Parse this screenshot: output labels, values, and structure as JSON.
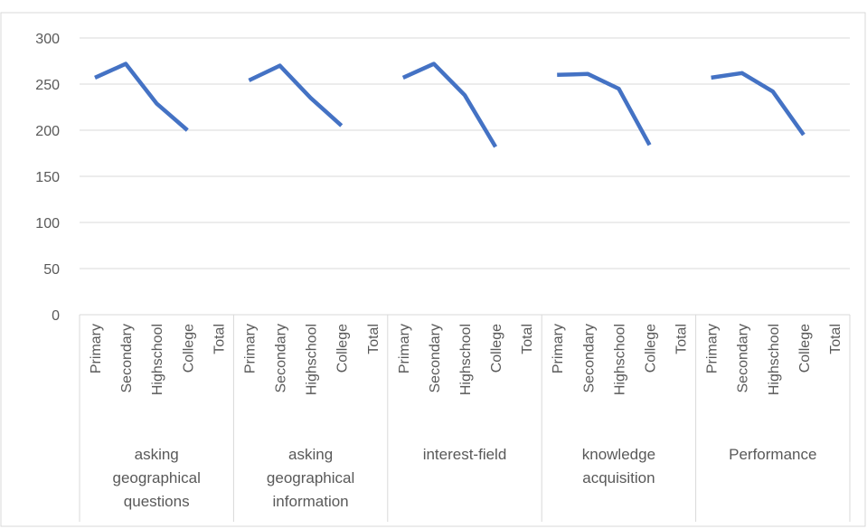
{
  "chart_data": {
    "type": "line",
    "ylim": [
      0,
      300
    ],
    "yticks": [
      0,
      50,
      100,
      150,
      200,
      250,
      300
    ],
    "grid": true,
    "legend": "none",
    "series_color": "#4472C4",
    "groups": [
      {
        "label": [
          "asking",
          "geographical",
          "questions"
        ],
        "categories": [
          "Primary",
          "Secondary",
          "Highschool",
          "College",
          "Total"
        ],
        "values": [
          257,
          272,
          229,
          200,
          null
        ]
      },
      {
        "label": [
          "asking",
          "geographical",
          "information"
        ],
        "categories": [
          "Primary",
          "Secondary",
          "Highschool",
          "College",
          "Total"
        ],
        "values": [
          254,
          270,
          235,
          205,
          null
        ]
      },
      {
        "label": [
          "interest-field"
        ],
        "categories": [
          "Primary",
          "Secondary",
          "Highschool",
          "College",
          "Total"
        ],
        "values": [
          257,
          272,
          238,
          182,
          null
        ]
      },
      {
        "label": [
          "knowledge",
          "acquisition"
        ],
        "categories": [
          "Primary",
          "Secondary",
          "Highschool",
          "College",
          "Total"
        ],
        "values": [
          260,
          261,
          245,
          184,
          null
        ]
      },
      {
        "label": [
          "Performance"
        ],
        "categories": [
          "Primary",
          "Secondary",
          "Highschool",
          "College",
          "Total"
        ],
        "values": [
          257,
          262,
          242,
          195,
          null
        ]
      }
    ]
  }
}
